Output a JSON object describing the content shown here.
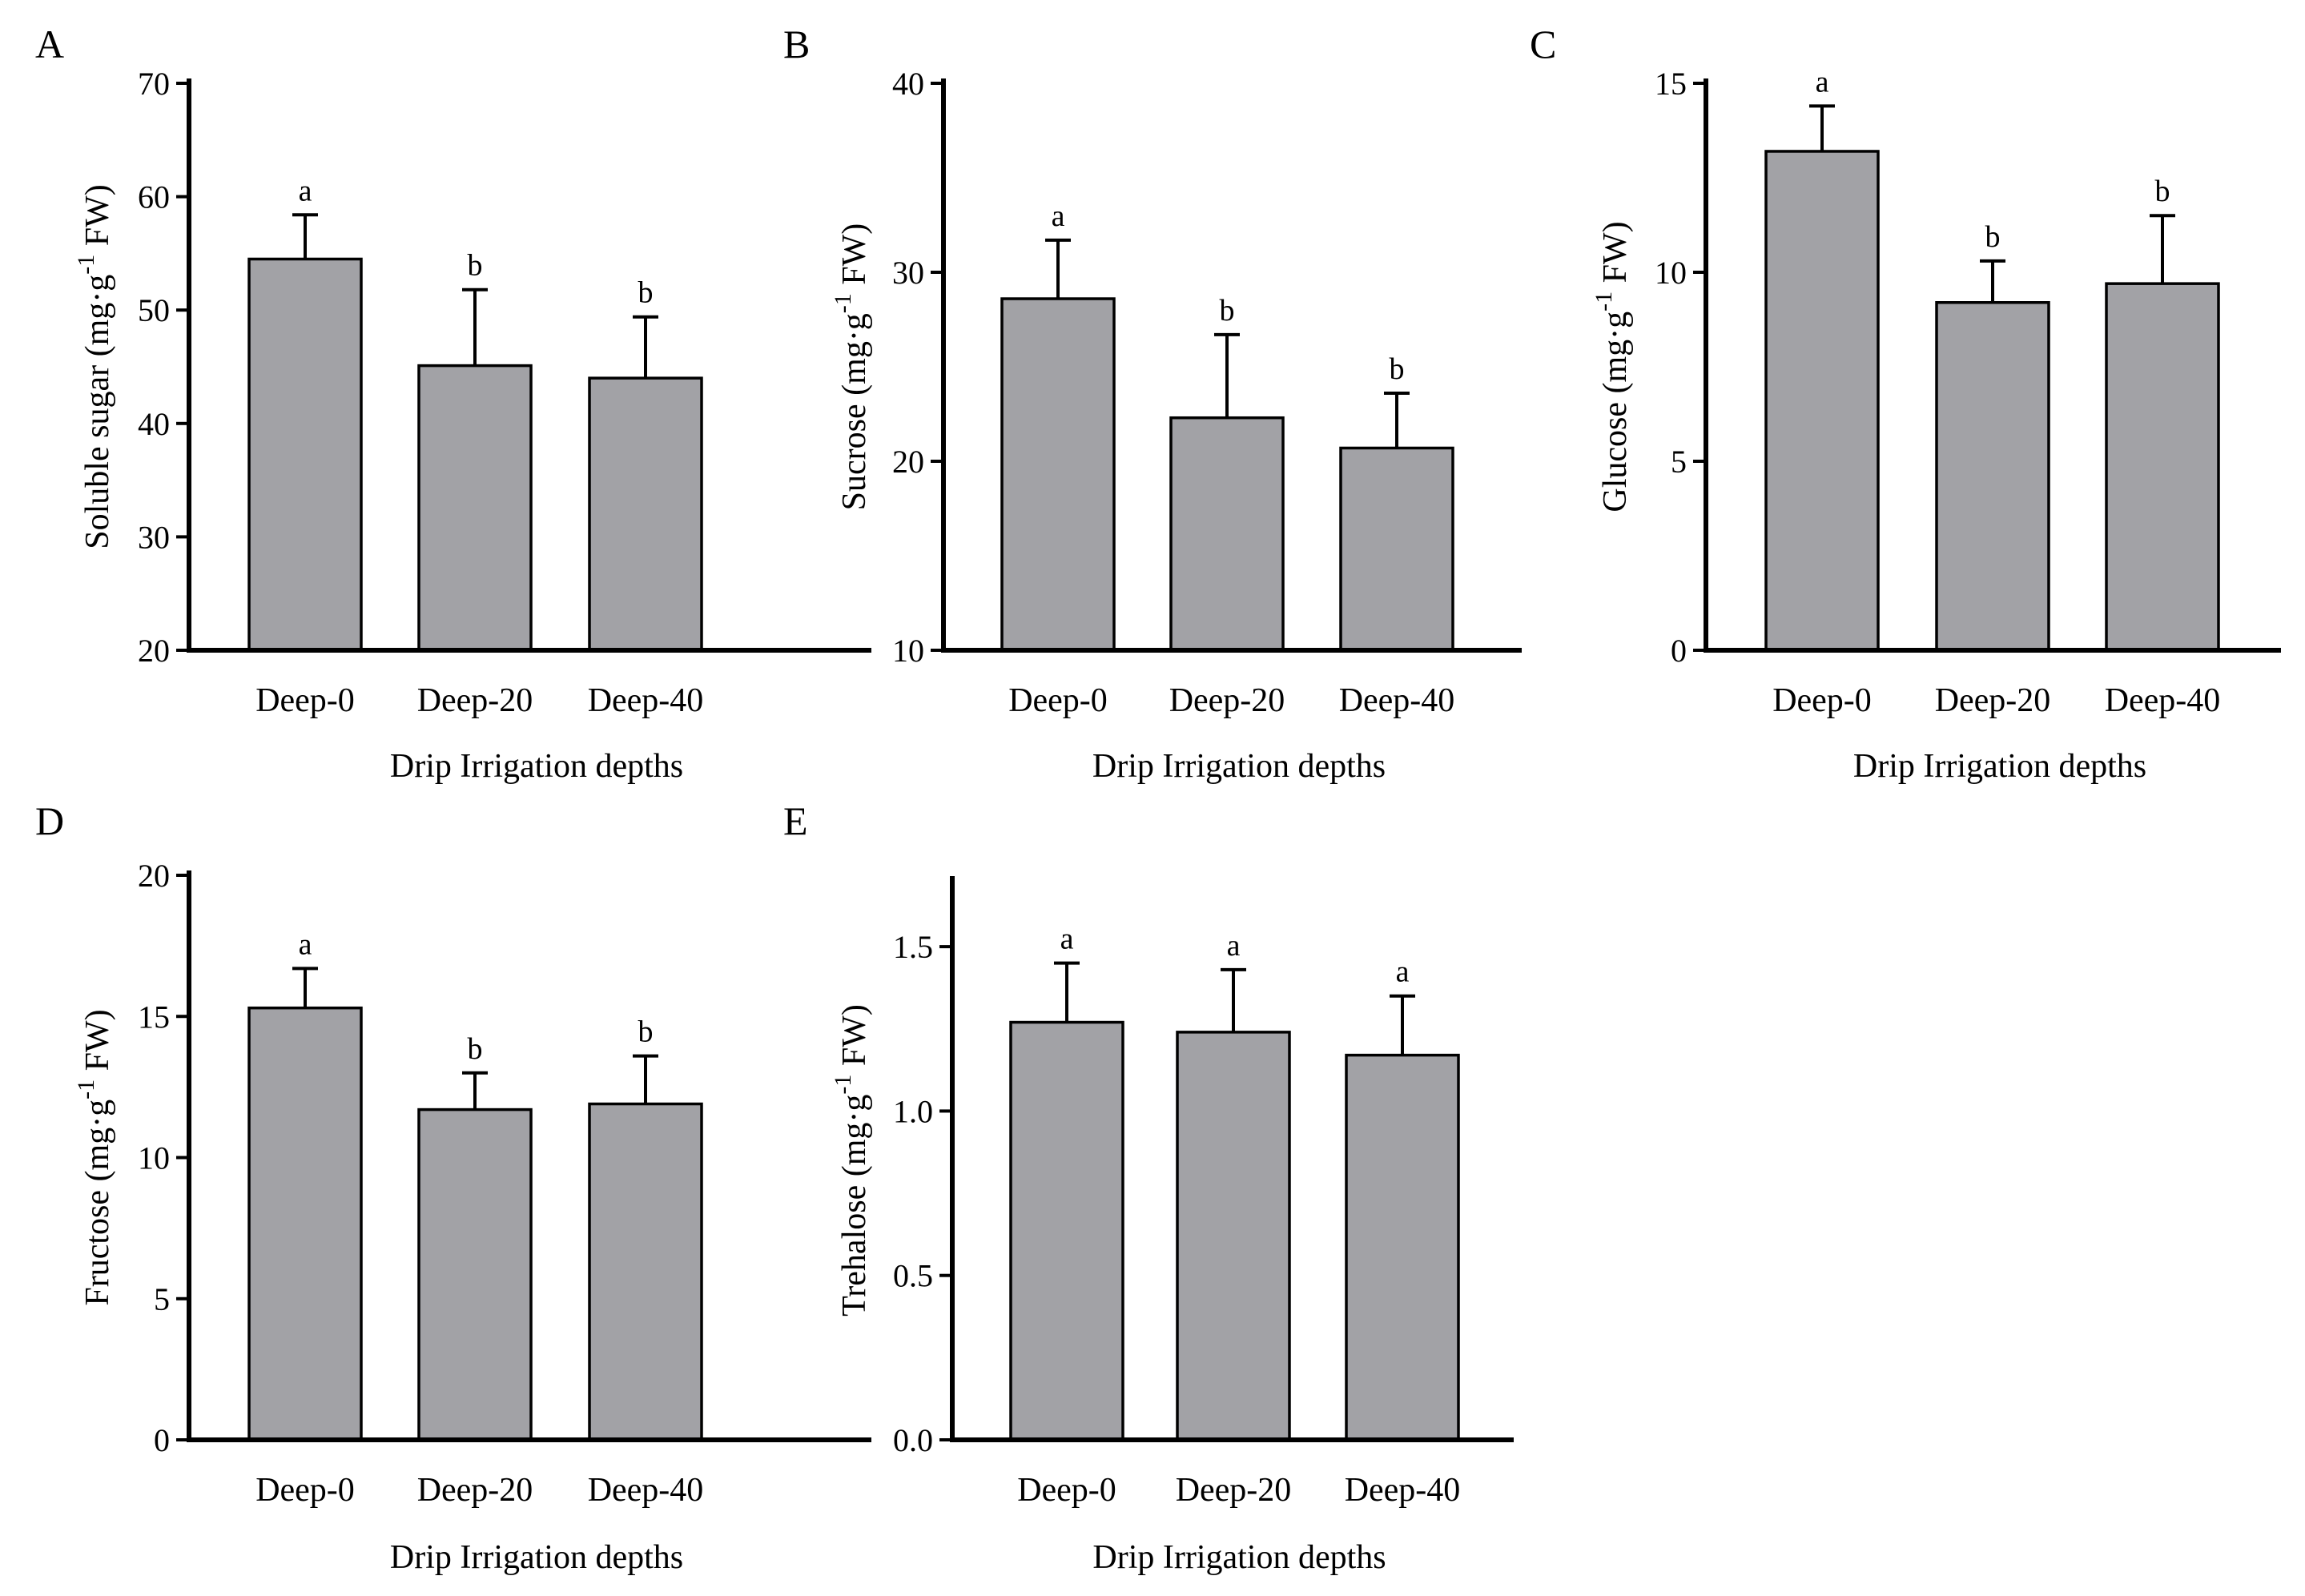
{
  "figure": {
    "title": ""
  },
  "chart_data": [
    {
      "type": "bar",
      "panel": "A",
      "title": "",
      "categories": [
        "Deep-0",
        "Deep-20",
        "Deep-40"
      ],
      "values": [
        54.5,
        45.1,
        44.0
      ],
      "errors": [
        3.9,
        6.7,
        5.4
      ],
      "significance": [
        "a",
        "b",
        "b"
      ],
      "xlabel": "Drip Irrigation depths",
      "ylabel_main": "Soluble sugar (mg·g",
      "ylabel_sup": "-1",
      "ylabel_tail": " FW)",
      "ylim": [
        20,
        70
      ],
      "yticks": [
        20,
        30,
        40,
        50,
        60,
        70
      ],
      "ytick_labels": [
        "20",
        "30",
        "40",
        "50",
        "60",
        "70"
      ]
    },
    {
      "type": "bar",
      "panel": "B",
      "title": "",
      "categories": [
        "Deep-0",
        "Deep-20",
        "Deep-40"
      ],
      "values": [
        28.6,
        22.3,
        20.7
      ],
      "errors": [
        3.1,
        4.4,
        2.9
      ],
      "significance": [
        "a",
        "b",
        "b"
      ],
      "xlabel": "Drip Irrigation depths",
      "ylabel_main": "Sucrose (mg·g",
      "ylabel_sup": "-1",
      "ylabel_tail": " FW)",
      "ylim": [
        10,
        40
      ],
      "yticks": [
        10,
        20,
        30,
        40
      ],
      "ytick_labels": [
        "10",
        "20",
        "30",
        "40"
      ]
    },
    {
      "type": "bar",
      "panel": "C",
      "title": "",
      "categories": [
        "Deep-0",
        "Deep-20",
        "Deep-40"
      ],
      "values": [
        13.2,
        9.2,
        9.7
      ],
      "errors": [
        1.2,
        1.1,
        1.8
      ],
      "significance": [
        "a",
        "b",
        "b"
      ],
      "xlabel": "Drip Irrigation depths",
      "ylabel_main": "Glucose (mg·g",
      "ylabel_sup": "-1",
      "ylabel_tail": " FW)",
      "ylim": [
        0,
        15
      ],
      "yticks": [
        0,
        5,
        10,
        15
      ],
      "ytick_labels": [
        "0",
        "5",
        "10",
        "15"
      ]
    },
    {
      "type": "bar",
      "panel": "D",
      "title": "",
      "categories": [
        "Deep-0",
        "Deep-20",
        "Deep-40"
      ],
      "values": [
        15.3,
        11.7,
        11.9
      ],
      "errors": [
        1.4,
        1.3,
        1.7
      ],
      "significance": [
        "a",
        "b",
        "b"
      ],
      "xlabel": "Drip Irrigation depths",
      "ylabel_main": "Fructose (mg·g",
      "ylabel_sup": "-1",
      "ylabel_tail": " FW)",
      "ylim": [
        0,
        20
      ],
      "yticks": [
        0,
        5,
        10,
        15,
        20
      ],
      "ytick_labels": [
        "0",
        "5",
        "10",
        "15",
        "20"
      ]
    },
    {
      "type": "bar",
      "panel": "E",
      "title": "",
      "categories": [
        "Deep-0",
        "Deep-20",
        "Deep-40"
      ],
      "values": [
        1.27,
        1.24,
        1.17
      ],
      "errors": [
        0.18,
        0.19,
        0.18
      ],
      "significance": [
        "a",
        "a",
        "a"
      ],
      "xlabel": "Drip Irrigation depths",
      "ylabel_main": "Trehalose (mg·g",
      "ylabel_sup": "-1",
      "ylabel_tail": " FW)",
      "ylim": [
        0.0,
        1.7
      ],
      "yticks": [
        0.0,
        0.5,
        1.0,
        1.5
      ],
      "ytick_labels": [
        "0.0",
        "0.5",
        "1.0",
        "1.5"
      ]
    }
  ]
}
